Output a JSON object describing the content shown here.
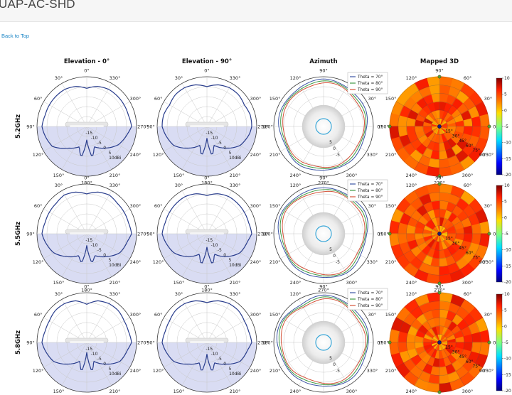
{
  "header": {
    "title": "UAP-AC-SHD"
  },
  "nav": {
    "back_to_top": "Back to Top"
  },
  "columns": [
    "Elevation - 0°",
    "Elevation - 90°",
    "Azimuth",
    "Mapped 3D"
  ],
  "rows": [
    "5.2GHz",
    "5.5GHz",
    "5.8GHz"
  ],
  "colors": {
    "pattern_line": "#283c8c",
    "lower_hemisphere": "#d9dcf3",
    "theta70": "#3a53a4",
    "theta80": "#3f9a44",
    "theta90": "#d4533a",
    "device_ring": "#3aa7d8",
    "heatmap_low": "#00007f",
    "heatmap_high": "#7f0000"
  },
  "chart_data": [
    {
      "type": "polar-line",
      "chart": "elevation-0",
      "angle_labels": [
        "0°",
        "30°",
        "60°",
        "90°",
        "120°",
        "150°",
        "180°",
        "210°",
        "240°",
        "270°",
        "300°",
        "330°"
      ],
      "radial_ticks": [
        "-15",
        "-10",
        "-5",
        "0",
        "5",
        "10dBi"
      ],
      "rlim": [
        -20,
        10
      ],
      "series": [
        {
          "band": "5.2GHz",
          "angles": [
            0,
            15,
            30,
            45,
            60,
            75,
            90,
            120,
            140,
            160,
            170,
            175,
            180,
            185,
            190,
            200,
            220,
            240,
            260,
            270,
            285,
            300,
            315,
            330,
            345,
            360
          ],
          "gains": [
            3,
            5,
            6,
            6,
            6,
            6,
            7,
            4,
            -3,
            -7,
            -1,
            -7,
            -12,
            -7,
            -1,
            -7,
            -3,
            2,
            5,
            7,
            6,
            6,
            6,
            6,
            5,
            3
          ]
        },
        {
          "band": "5.5GHz",
          "angles": [
            0,
            15,
            30,
            45,
            60,
            75,
            90,
            120,
            140,
            160,
            170,
            175,
            180,
            185,
            190,
            200,
            220,
            240,
            260,
            270,
            285,
            300,
            315,
            330,
            345,
            360
          ],
          "gains": [
            4,
            6,
            7,
            6,
            6,
            6,
            7,
            3,
            -2,
            -6,
            -2,
            -8,
            -13,
            -8,
            -2,
            -6,
            -2,
            3,
            5,
            7,
            6,
            6,
            6,
            7,
            6,
            4
          ]
        },
        {
          "band": "5.8GHz",
          "angles": [
            0,
            15,
            30,
            45,
            60,
            75,
            90,
            120,
            140,
            160,
            170,
            175,
            180,
            185,
            190,
            200,
            220,
            240,
            260,
            270,
            285,
            300,
            315,
            330,
            345,
            360
          ],
          "gains": [
            3,
            6,
            7,
            7,
            6,
            6,
            7,
            3,
            -3,
            -8,
            -2,
            -9,
            -14,
            -9,
            -2,
            -8,
            -3,
            3,
            5,
            7,
            6,
            6,
            7,
            7,
            6,
            3
          ]
        }
      ]
    },
    {
      "type": "polar-line",
      "chart": "elevation-90",
      "angle_labels": [
        "0°",
        "30°",
        "60°",
        "90°",
        "120°",
        "150°",
        "180°",
        "210°",
        "240°",
        "270°",
        "300°",
        "330°"
      ],
      "radial_ticks": [
        "-15",
        "-10",
        "-5",
        "0",
        "5",
        "10dBi"
      ],
      "rlim": [
        -20,
        10
      ],
      "series": [
        {
          "band": "5.2GHz",
          "angles": [
            0,
            15,
            30,
            45,
            60,
            75,
            90,
            120,
            140,
            160,
            170,
            175,
            180,
            185,
            190,
            200,
            220,
            240,
            260,
            270,
            285,
            300,
            315,
            330,
            345,
            360
          ],
          "gains": [
            4,
            6,
            7,
            7,
            6,
            7,
            7,
            3,
            -3,
            -8,
            -2,
            -8,
            -13,
            -8,
            -2,
            -8,
            -3,
            3,
            6,
            7,
            7,
            6,
            7,
            7,
            6,
            4
          ]
        },
        {
          "band": "5.5GHz",
          "angles": [
            0,
            15,
            30,
            45,
            60,
            75,
            90,
            120,
            140,
            160,
            170,
            175,
            180,
            185,
            190,
            200,
            220,
            240,
            260,
            270,
            285,
            300,
            315,
            330,
            345,
            360
          ],
          "gains": [
            3,
            5,
            6,
            6,
            6,
            6,
            7,
            3,
            -2,
            -7,
            -1,
            -7,
            -12,
            -7,
            -1,
            -7,
            -2,
            3,
            5,
            7,
            6,
            6,
            6,
            6,
            5,
            3
          ]
        },
        {
          "band": "5.8GHz",
          "angles": [
            0,
            15,
            30,
            45,
            60,
            75,
            90,
            120,
            140,
            160,
            170,
            175,
            180,
            185,
            190,
            200,
            220,
            240,
            260,
            270,
            285,
            300,
            315,
            330,
            345,
            360
          ],
          "gains": [
            4,
            6,
            7,
            7,
            6,
            6,
            7,
            3,
            -3,
            -7,
            -2,
            -8,
            -13,
            -8,
            -2,
            -7,
            -3,
            3,
            5,
            7,
            6,
            6,
            7,
            7,
            6,
            4
          ]
        }
      ]
    },
    {
      "type": "polar-line",
      "chart": "azimuth",
      "angle_labels": [
        "0°",
        "30°",
        "60°",
        "90°",
        "120°",
        "150°",
        "180°",
        "210°",
        "240°",
        "270°",
        "300°",
        "330°"
      ],
      "radial_ticks": [
        "5",
        "0",
        "-5"
      ],
      "rlim": [
        -20,
        10
      ],
      "legend": [
        "Theta = 70°",
        "Theta = 80°",
        "Theta = 90°"
      ],
      "legend_position": "top-right",
      "series_5_2GHz": [
        {
          "name": "Theta = 70°",
          "angles": [
            0,
            30,
            60,
            90,
            120,
            150,
            180,
            210,
            240,
            270,
            300,
            330
          ],
          "gains": [
            6,
            7,
            8,
            8,
            8,
            7,
            7,
            6,
            7,
            7,
            6,
            6
          ]
        },
        {
          "name": "Theta = 80°",
          "angles": [
            0,
            30,
            60,
            90,
            120,
            150,
            180,
            210,
            240,
            270,
            300,
            330
          ],
          "gains": [
            5,
            6,
            7,
            7,
            7,
            6,
            6,
            5,
            6,
            6,
            5,
            5
          ]
        },
        {
          "name": "Theta = 90°",
          "angles": [
            0,
            30,
            60,
            90,
            120,
            150,
            180,
            210,
            240,
            270,
            300,
            330
          ],
          "gains": [
            4,
            5,
            6,
            6,
            6,
            5,
            5,
            4,
            5,
            5,
            4,
            4
          ]
        }
      ],
      "series_5_5GHz": [
        {
          "name": "Theta = 70°",
          "angles": [
            0,
            30,
            60,
            90,
            120,
            150,
            180,
            210,
            240,
            270,
            300,
            330
          ],
          "gains": [
            6,
            8,
            8,
            7,
            8,
            8,
            7,
            6,
            6,
            7,
            7,
            6
          ]
        },
        {
          "name": "Theta = 80°",
          "angles": [
            0,
            30,
            60,
            90,
            120,
            150,
            180,
            210,
            240,
            270,
            300,
            330
          ],
          "gains": [
            5,
            7,
            7,
            6,
            7,
            7,
            6,
            5,
            5,
            6,
            6,
            5
          ]
        },
        {
          "name": "Theta = 90°",
          "angles": [
            0,
            30,
            60,
            90,
            120,
            150,
            180,
            210,
            240,
            270,
            300,
            330
          ],
          "gains": [
            4,
            6,
            6,
            5,
            6,
            6,
            5,
            4,
            4,
            5,
            5,
            4
          ]
        }
      ],
      "series_5_8GHz": [
        {
          "name": "Theta = 70°",
          "angles": [
            0,
            30,
            60,
            90,
            120,
            150,
            180,
            210,
            240,
            270,
            300,
            330
          ],
          "gains": [
            7,
            7,
            8,
            8,
            7,
            8,
            8,
            7,
            6,
            7,
            7,
            7
          ]
        },
        {
          "name": "Theta = 80°",
          "angles": [
            0,
            30,
            60,
            90,
            120,
            150,
            180,
            210,
            240,
            270,
            300,
            330
          ],
          "gains": [
            6,
            6,
            7,
            7,
            6,
            7,
            7,
            6,
            5,
            6,
            6,
            6
          ]
        },
        {
          "name": "Theta = 90°",
          "angles": [
            0,
            30,
            60,
            90,
            120,
            150,
            180,
            210,
            240,
            270,
            300,
            330
          ],
          "gains": [
            5,
            5,
            6,
            6,
            5,
            6,
            6,
            5,
            4,
            5,
            5,
            5
          ]
        }
      ]
    },
    {
      "type": "heatmap",
      "chart": "mapped-3d",
      "angle_labels": [
        "90°",
        "60°",
        "30°",
        "0°",
        "330°",
        "300°",
        "270°",
        "240°",
        "210°",
        "180°",
        "150°",
        "120°"
      ],
      "radial_labels": [
        "15°",
        "30°",
        "45°",
        "60°",
        "75°",
        "90°"
      ],
      "colorbar_ticks": [
        "10",
        "5",
        "0",
        "-5",
        "-10",
        "-15",
        "-20"
      ],
      "zlim": [
        -20,
        10
      ]
    }
  ]
}
